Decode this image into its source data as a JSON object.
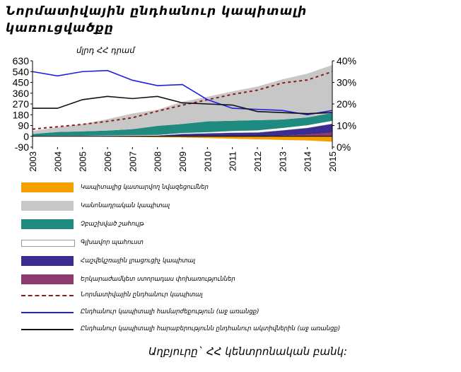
{
  "title": "Նորմատիվային ընդհանուր կապիտալի կառուցվածքը",
  "unit_label": "մլրդ ՀՀ դրամ",
  "source": "Աղբյուրը` ՀՀ կենտրոնական բանկ:",
  "colors": {
    "orange": "#f5a000",
    "grey": "#c7c7c7",
    "teal": "#1f8a80",
    "white": "#ffffff",
    "purple": "#3b2d8f",
    "maroon": "#8e3a6e",
    "red_dash": "#8a1c1c",
    "blue": "#1f1fe0",
    "black": "#111111"
  },
  "legend": [
    {
      "name": "Կապիտալից կատարվող նվազեցումներ",
      "type": "area",
      "color": "#f5a000"
    },
    {
      "name": "Կանոնադրական կապիտալ",
      "type": "area",
      "color": "#c7c7c7"
    },
    {
      "name": "Չբաշխված շահույթ",
      "type": "area",
      "color": "#1f8a80"
    },
    {
      "name": "Գլխավոր պահուստ",
      "type": "area",
      "color": "#ffffff"
    },
    {
      "name": "Հաշվեկշռային լրացուցիչ կապիտալ",
      "type": "area",
      "color": "#3b2d8f"
    },
    {
      "name": "Երկարաժամկետ ստորադաս փոխառություններ",
      "type": "area",
      "color": "#8e3a6e"
    },
    {
      "name": "Նորմատիվային ընդհանուր կապիտալ",
      "type": "dash",
      "color": "#8a1c1c"
    },
    {
      "name": "Ընդհանուր կապիտալի համարժեքություն (աջ առանցք)",
      "type": "line",
      "color": "#1f1fe0"
    },
    {
      "name": "Ընդհանուր կապիտալի հարաբերությունն ընդհանուր ակտիվներին (աջ առանցք)",
      "type": "line",
      "color": "#111111"
    }
  ],
  "chart_data": {
    "type": "area",
    "x": [
      "2003",
      "2004",
      "2005",
      "2006",
      "2007",
      "2008",
      "2009",
      "2010",
      "2011",
      "2012",
      "2013",
      "2014",
      "2015"
    ],
    "y_left_ticks": [
      "630",
      "540",
      "450",
      "360",
      "270",
      "180",
      "90",
      "0",
      "-90"
    ],
    "y_right_ticks": [
      "40%",
      "30%",
      "20%",
      "10%",
      "0%"
    ],
    "ylim_left": [
      -90,
      630
    ],
    "ylim_right": [
      0,
      40
    ],
    "stacked_areas": [
      {
        "name": "Երկարաժամկետ ստորադաս փոխառություններ",
        "values": [
          0,
          0,
          0,
          0,
          0,
          0,
          0,
          0,
          0,
          0,
          5,
          15,
          30
        ]
      },
      {
        "name": "Հաշվեկշռային լրացուցիչ կապիտալ",
        "values": [
          2,
          3,
          3,
          4,
          5,
          6,
          20,
          25,
          30,
          32,
          45,
          55,
          75
        ]
      },
      {
        "name": "Գլխավոր պահուստ",
        "values": [
          2,
          3,
          3,
          4,
          5,
          6,
          8,
          10,
          15,
          18,
          20,
          23,
          25
        ]
      },
      {
        "name": "Չբաշխված շահույթ",
        "values": [
          15,
          30,
          35,
          40,
          50,
          75,
          75,
          90,
          85,
          85,
          70,
          65,
          65
        ]
      },
      {
        "name": "Կանոնադրական կապիտալ",
        "values": [
          25,
          40,
          60,
          95,
          130,
          135,
          185,
          205,
          245,
          280,
          335,
          365,
          400
        ]
      }
    ],
    "negative_area": {
      "name": "Կապիտալից կատարվող նվազեցումներ",
      "values": [
        0,
        0,
        0,
        -3,
        -5,
        -8,
        -10,
        -15,
        -20,
        -25,
        -30,
        -35,
        -45
      ]
    },
    "lines_left": [
      {
        "name": "Նորմատիվային ընդհանուր կապիտալ",
        "values": [
          60,
          80,
          100,
          125,
          155,
          210,
          260,
          305,
          350,
          385,
          445,
          470,
          540
        ]
      }
    ],
    "lines_right": [
      {
        "name": "Ընդհանուր կապիտալի համարժեքություն (աջ առանցք)",
        "values": [
          35,
          33,
          35,
          35.5,
          31,
          28.5,
          29,
          22,
          18,
          17.5,
          17,
          15,
          17
        ]
      },
      {
        "name": "Ընդհանուր կապիտալի հարաբերությունն ընդհանուր ակտիվներին (աջ առանցք)",
        "values": [
          18,
          18,
          22,
          23.5,
          22.5,
          23.5,
          20.5,
          20,
          19.5,
          16.5,
          16,
          15.5,
          16
        ]
      }
    ],
    "grid": false,
    "legend_position": "bottom"
  }
}
